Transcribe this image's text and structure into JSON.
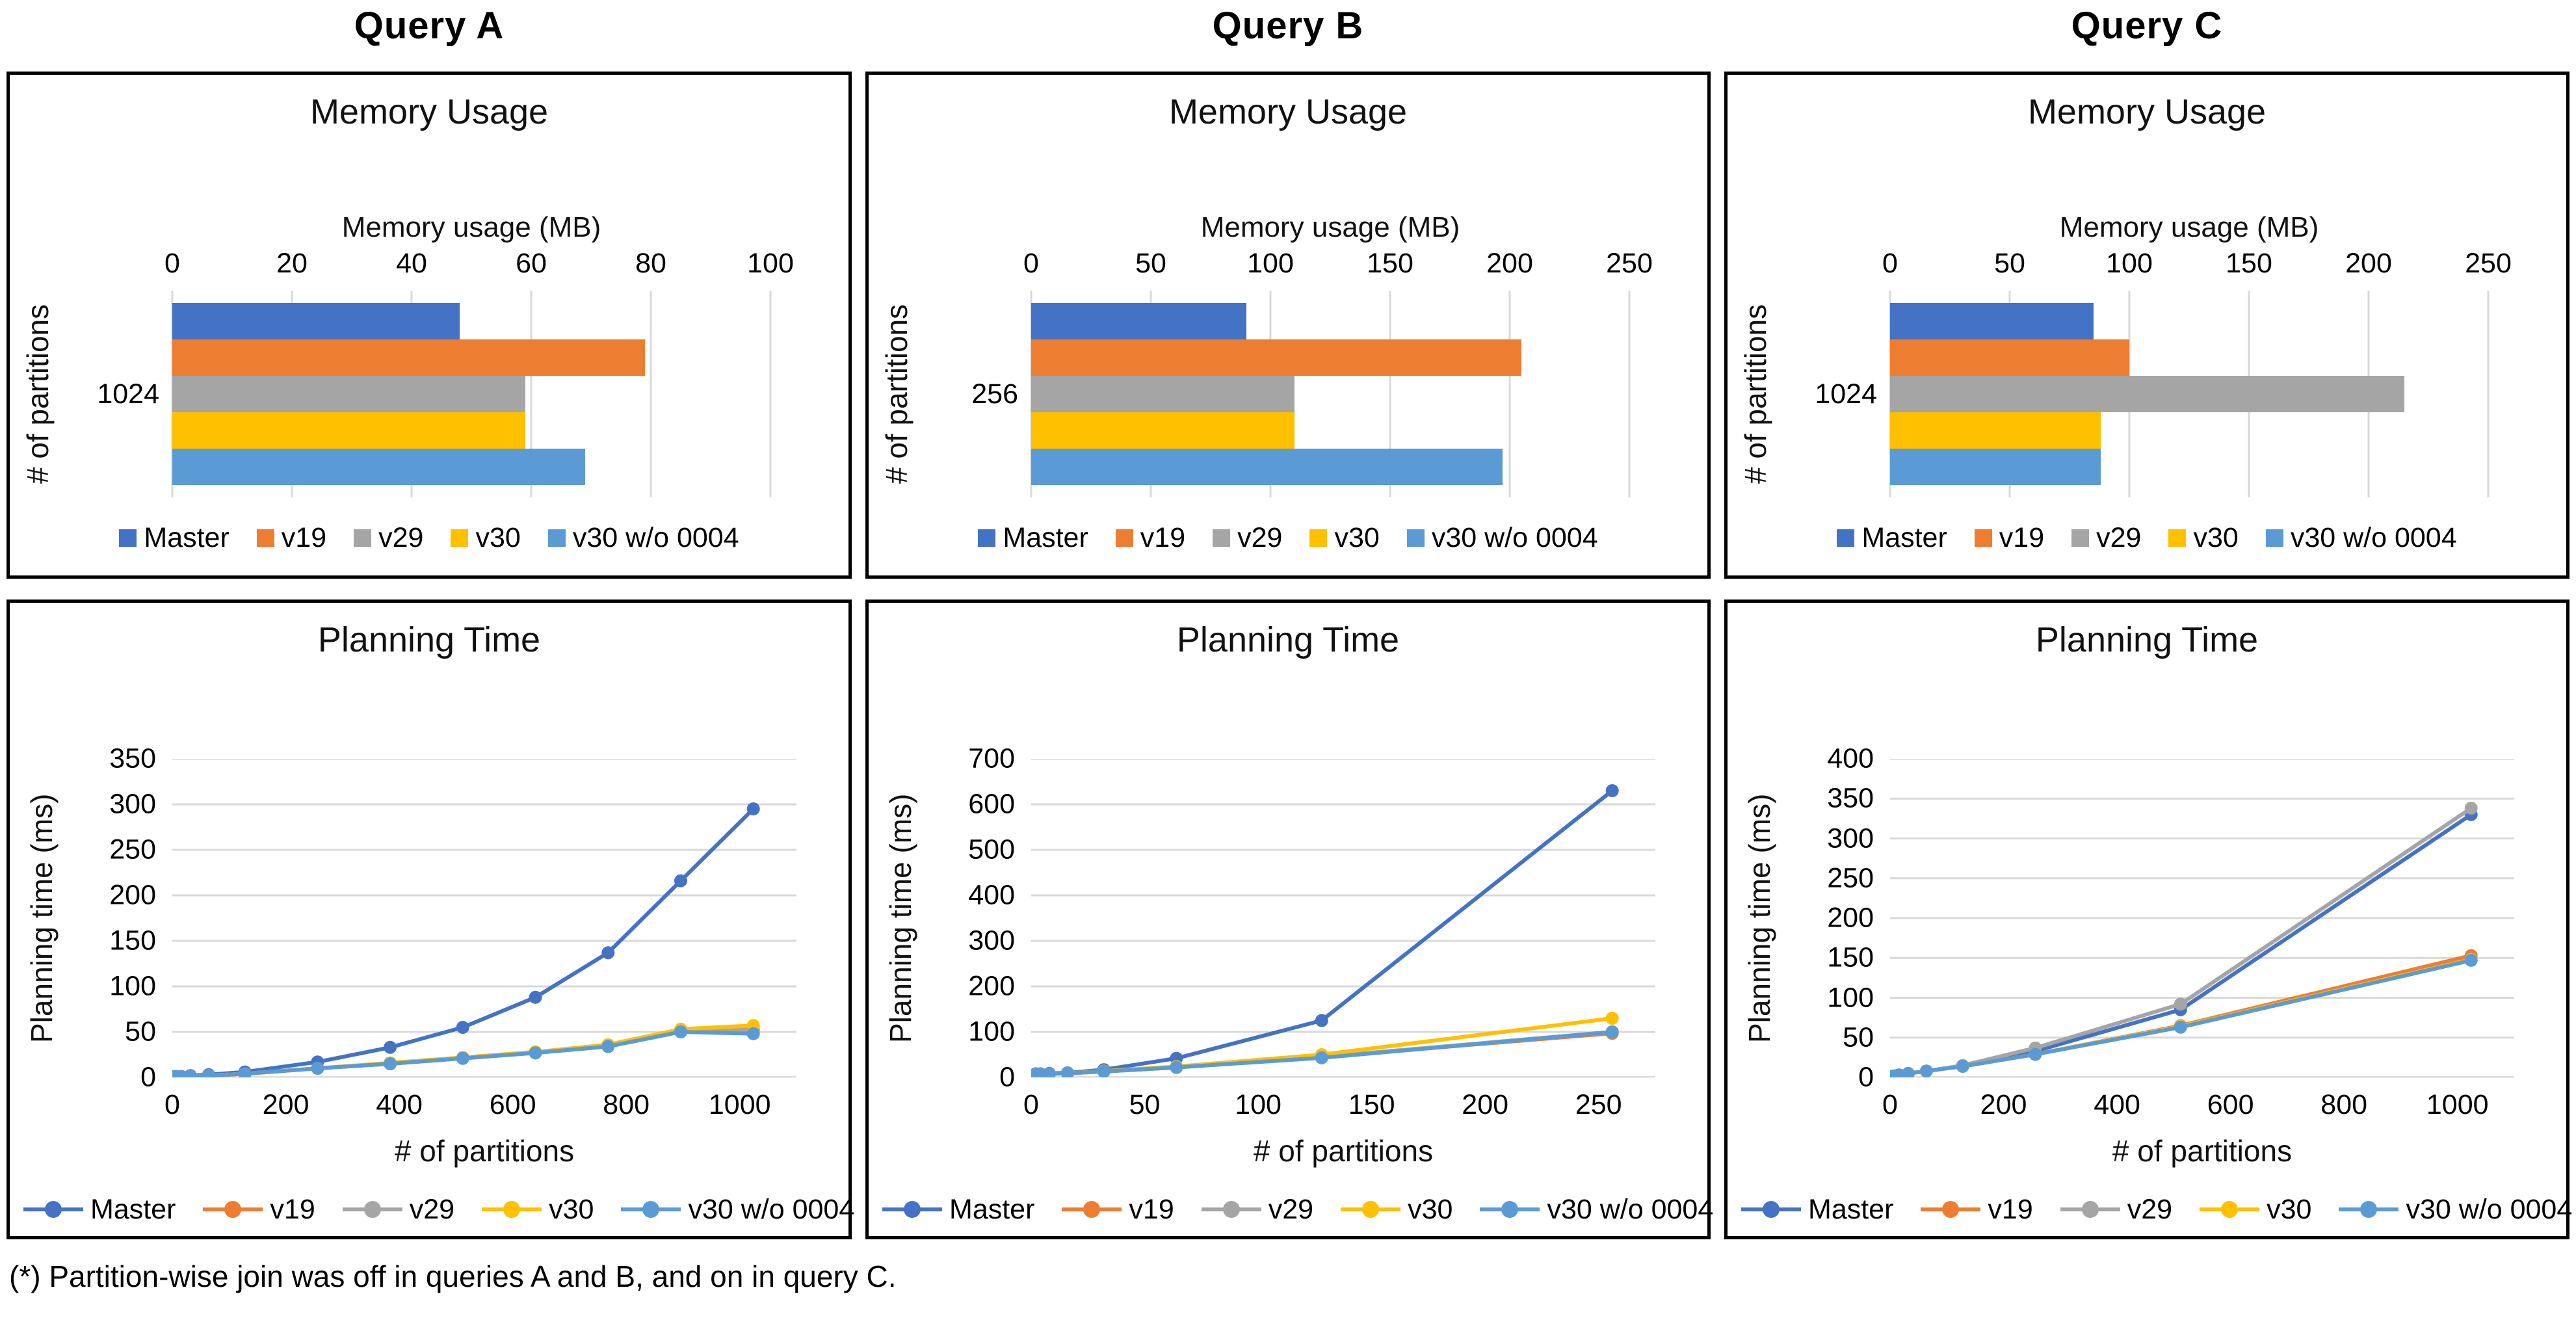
{
  "page": {
    "footnote": "(*) Partition-wise join was off in queries A and B, and on in query C."
  },
  "columns": [
    {
      "title": "Query A"
    },
    {
      "title": "Query B"
    },
    {
      "title": "Query C"
    }
  ],
  "colors": {
    "master": "#4472C4",
    "v19": "#ED7D31",
    "v29": "#A5A5A5",
    "v30": "#FFC000",
    "v30_wo_0004": "#5B9BD5",
    "gridline": "#d9d9d9",
    "axis_line": "#bfbfbf"
  },
  "chart_data": [
    {
      "id": "mem-query-a",
      "type": "bar",
      "orientation": "horizontal",
      "panel": "Query A",
      "title": "Memory Usage",
      "xlabel": "Memory usage (MB)",
      "ylabel": "# of partitions",
      "category": "1024",
      "xlim": [
        0,
        100
      ],
      "xticks": [
        0,
        20,
        40,
        60,
        80,
        100
      ],
      "grid": true,
      "legend_position": "bottom",
      "series": [
        {
          "name": "Master",
          "color": "#4472C4",
          "value": 48
        },
        {
          "name": "v19",
          "color": "#ED7D31",
          "value": 79
        },
        {
          "name": "v29",
          "color": "#A5A5A5",
          "value": 59
        },
        {
          "name": "v30",
          "color": "#FFC000",
          "value": 59
        },
        {
          "name": "v30 w/o 0004",
          "color": "#5B9BD5",
          "value": 69
        }
      ]
    },
    {
      "id": "mem-query-b",
      "type": "bar",
      "orientation": "horizontal",
      "panel": "Query B",
      "title": "Memory Usage",
      "xlabel": "Memory usage (MB)",
      "ylabel": "# of partitions",
      "category": "256",
      "xlim": [
        0,
        250
      ],
      "xticks": [
        0,
        50,
        100,
        150,
        200,
        250
      ],
      "grid": true,
      "legend_position": "bottom",
      "series": [
        {
          "name": "Master",
          "color": "#4472C4",
          "value": 90
        },
        {
          "name": "v19",
          "color": "#ED7D31",
          "value": 205
        },
        {
          "name": "v29",
          "color": "#A5A5A5",
          "value": 110
        },
        {
          "name": "v30",
          "color": "#FFC000",
          "value": 110
        },
        {
          "name": "v30 w/o 0004",
          "color": "#5B9BD5",
          "value": 197
        }
      ]
    },
    {
      "id": "mem-query-c",
      "type": "bar",
      "orientation": "horizontal",
      "panel": "Query C",
      "title": "Memory Usage",
      "xlabel": "Memory usage (MB)",
      "ylabel": "# of partitions",
      "category": "1024",
      "xlim": [
        0,
        250
      ],
      "xticks": [
        0,
        50,
        100,
        150,
        200,
        250
      ],
      "grid": true,
      "legend_position": "bottom",
      "series": [
        {
          "name": "Master",
          "color": "#4472C4",
          "value": 85
        },
        {
          "name": "v19",
          "color": "#ED7D31",
          "value": 100
        },
        {
          "name": "v29",
          "color": "#A5A5A5",
          "value": 215
        },
        {
          "name": "v30",
          "color": "#FFC000",
          "value": 88
        },
        {
          "name": "v30 w/o 0004",
          "color": "#5B9BD5",
          "value": 88
        }
      ]
    },
    {
      "id": "plan-query-a",
      "type": "line",
      "panel": "Query A",
      "title": "Planning Time",
      "xlabel": "# of partitions",
      "ylabel": "Planning time (ms)",
      "xlim": [
        0,
        1100
      ],
      "xticks": [
        0,
        200,
        400,
        600,
        800,
        1000
      ],
      "ylim": [
        0,
        350
      ],
      "yticks": [
        0,
        50,
        100,
        150,
        200,
        250,
        300,
        350
      ],
      "grid": true,
      "legend_position": "bottom",
      "x": [
        2,
        4,
        8,
        16,
        32,
        64,
        128,
        256,
        384,
        512,
        640,
        768,
        896,
        1024
      ],
      "series": [
        {
          "name": "Master",
          "color": "#4472C4",
          "values": [
            1,
            1,
            1,
            1,
            2,
            3,
            6,
            17,
            33,
            55,
            88,
            137,
            216,
            295
          ]
        },
        {
          "name": "v19",
          "color": "#ED7D31",
          "values": [
            1,
            1,
            1,
            1,
            1,
            2,
            4,
            10,
            15,
            21,
            27,
            34,
            51,
            53
          ]
        },
        {
          "name": "v29",
          "color": "#A5A5A5",
          "values": [
            1,
            1,
            1,
            1,
            1,
            2,
            4,
            10,
            15,
            21,
            27,
            34,
            51,
            52
          ]
        },
        {
          "name": "v30",
          "color": "#FFC000",
          "values": [
            1,
            1,
            1,
            1,
            1,
            2,
            4,
            10,
            16,
            22,
            28,
            36,
            53,
            57
          ]
        },
        {
          "name": "v30 w/o 0004",
          "color": "#5B9BD5",
          "values": [
            1,
            1,
            1,
            1,
            1,
            2,
            4,
            10,
            15,
            21,
            27,
            34,
            50,
            48
          ]
        }
      ]
    },
    {
      "id": "plan-query-b",
      "type": "line",
      "panel": "Query B",
      "title": "Planning Time",
      "xlabel": "# of partitions",
      "ylabel": "Planning time (ms)",
      "xlim": [
        0,
        275
      ],
      "xticks": [
        0,
        50,
        100,
        150,
        200,
        250
      ],
      "ylim": [
        0,
        700
      ],
      "yticks": [
        0,
        100,
        200,
        300,
        400,
        500,
        600,
        700
      ],
      "grid": true,
      "legend_position": "bottom",
      "x": [
        2,
        4,
        8,
        16,
        32,
        64,
        128,
        256
      ],
      "series": [
        {
          "name": "Master",
          "color": "#4472C4",
          "values": [
            8,
            8,
            9,
            10,
            17,
            42,
            125,
            630
          ]
        },
        {
          "name": "v19",
          "color": "#ED7D31",
          "values": [
            7,
            7,
            8,
            9,
            13,
            22,
            45,
            97
          ]
        },
        {
          "name": "v29",
          "color": "#A5A5A5",
          "values": [
            7,
            7,
            8,
            9,
            13,
            22,
            45,
            100
          ]
        },
        {
          "name": "v30",
          "color": "#FFC000",
          "values": [
            7,
            7,
            8,
            9,
            14,
            24,
            50,
            130
          ]
        },
        {
          "name": "v30 w/o 0004",
          "color": "#5B9BD5",
          "values": [
            7,
            7,
            8,
            9,
            13,
            22,
            43,
            100
          ]
        }
      ]
    },
    {
      "id": "plan-query-c",
      "type": "line",
      "panel": "Query C",
      "title": "Planning Time",
      "xlabel": "# of partitions",
      "ylabel": "Planning time (ms)",
      "xlim": [
        0,
        1100
      ],
      "xticks": [
        0,
        200,
        400,
        600,
        800,
        1000
      ],
      "ylim": [
        0,
        400
      ],
      "yticks": [
        0,
        50,
        100,
        150,
        200,
        250,
        300,
        350,
        400
      ],
      "grid": true,
      "legend_position": "bottom",
      "x": [
        2,
        4,
        8,
        16,
        32,
        64,
        128,
        256,
        512,
        1024
      ],
      "series": [
        {
          "name": "Master",
          "color": "#4472C4",
          "values": [
            1,
            1,
            2,
            3,
            5,
            8,
            14,
            33,
            85,
            330
          ]
        },
        {
          "name": "v19",
          "color": "#ED7D31",
          "values": [
            1,
            1,
            2,
            3,
            5,
            8,
            14,
            29,
            65,
            153
          ]
        },
        {
          "name": "v29",
          "color": "#A5A5A5",
          "values": [
            1,
            1,
            2,
            3,
            5,
            8,
            15,
            37,
            92,
            338
          ]
        },
        {
          "name": "v30",
          "color": "#FFC000",
          "values": [
            1,
            1,
            2,
            3,
            5,
            8,
            14,
            29,
            64,
            148
          ]
        },
        {
          "name": "v30 w/o 0004",
          "color": "#5B9BD5",
          "values": [
            1,
            1,
            2,
            3,
            5,
            8,
            14,
            29,
            63,
            147
          ]
        }
      ]
    }
  ]
}
